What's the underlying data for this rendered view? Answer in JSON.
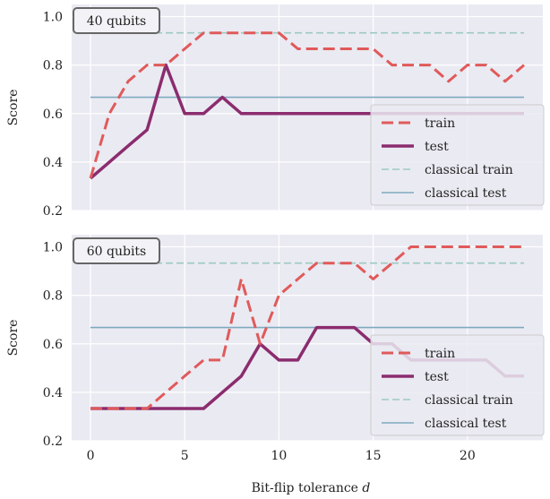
{
  "chart_data": [
    {
      "type": "line",
      "panel_label": "40 qubits",
      "xlabel": "",
      "ylabel": "Score",
      "xlim": [
        -1,
        24
      ],
      "ylim": [
        0.2,
        1.05
      ],
      "x_ticks": [
        "0",
        "5",
        "10",
        "15",
        "20"
      ],
      "y_ticks": [
        "0.2",
        "0.4",
        "0.6",
        "0.8",
        "1.0"
      ],
      "grid": true,
      "legend_position": "lower-right",
      "x": [
        0,
        1,
        2,
        3,
        4,
        5,
        6,
        7,
        8,
        9,
        10,
        11,
        12,
        13,
        14,
        15,
        16,
        17,
        18,
        19,
        20,
        21,
        22,
        23
      ],
      "series": [
        {
          "name": "train",
          "color": "#e05a5a",
          "style": "dashed",
          "values": [
            0.333,
            0.6,
            0.733,
            0.8,
            0.8,
            0.867,
            0.933,
            0.933,
            0.933,
            0.933,
            0.933,
            0.867,
            0.867,
            0.867,
            0.867,
            0.867,
            0.8,
            0.8,
            0.8,
            0.733,
            0.8,
            0.8,
            0.733,
            0.8
          ]
        },
        {
          "name": "test",
          "color": "#8b2c6e",
          "style": "solid",
          "values": [
            0.333,
            0.4,
            0.467,
            0.533,
            0.8,
            0.6,
            0.6,
            0.667,
            0.6,
            0.6,
            0.6,
            0.6,
            0.6,
            0.6,
            0.6,
            0.6,
            0.6,
            0.6,
            0.6,
            0.6,
            0.6,
            0.6,
            0.6,
            0.6
          ]
        },
        {
          "name": "classical train",
          "color": "#9cc9c3",
          "style": "dashed",
          "constant": 0.933
        },
        {
          "name": "classical test",
          "color": "#7fa9bf",
          "style": "solid",
          "constant": 0.667
        }
      ]
    },
    {
      "type": "line",
      "panel_label": "60 qubits",
      "xlabel": "Bit-flip tolerance d",
      "ylabel": "Score",
      "xlim": [
        -1,
        24
      ],
      "ylim": [
        0.2,
        1.05
      ],
      "x_ticks": [
        "0",
        "5",
        "10",
        "15",
        "20"
      ],
      "y_ticks": [
        "0.2",
        "0.4",
        "0.6",
        "0.8",
        "1.0"
      ],
      "grid": true,
      "legend_position": "lower-right",
      "x": [
        0,
        1,
        2,
        3,
        4,
        5,
        6,
        7,
        8,
        9,
        10,
        11,
        12,
        13,
        14,
        15,
        16,
        17,
        18,
        19,
        20,
        21,
        22,
        23
      ],
      "series": [
        {
          "name": "train",
          "color": "#e05a5a",
          "style": "dashed",
          "values": [
            0.333,
            0.333,
            0.333,
            0.333,
            0.4,
            0.467,
            0.533,
            0.533,
            0.867,
            0.6,
            0.8,
            0.867,
            0.933,
            0.933,
            0.933,
            0.867,
            0.933,
            1.0,
            1.0,
            1.0,
            1.0,
            1.0,
            1.0,
            1.0
          ]
        },
        {
          "name": "test",
          "color": "#8b2c6e",
          "style": "solid",
          "values": [
            0.333,
            0.333,
            0.333,
            0.333,
            0.333,
            0.333,
            0.333,
            0.4,
            0.467,
            0.6,
            0.533,
            0.533,
            0.667,
            0.667,
            0.667,
            0.6,
            0.6,
            0.533,
            0.533,
            0.533,
            0.533,
            0.533,
            0.467,
            0.467
          ]
        },
        {
          "name": "classical train",
          "color": "#9cc9c3",
          "style": "dashed",
          "constant": 0.933
        },
        {
          "name": "classical test",
          "color": "#7fa9bf",
          "style": "solid",
          "constant": 0.667
        }
      ]
    }
  ]
}
